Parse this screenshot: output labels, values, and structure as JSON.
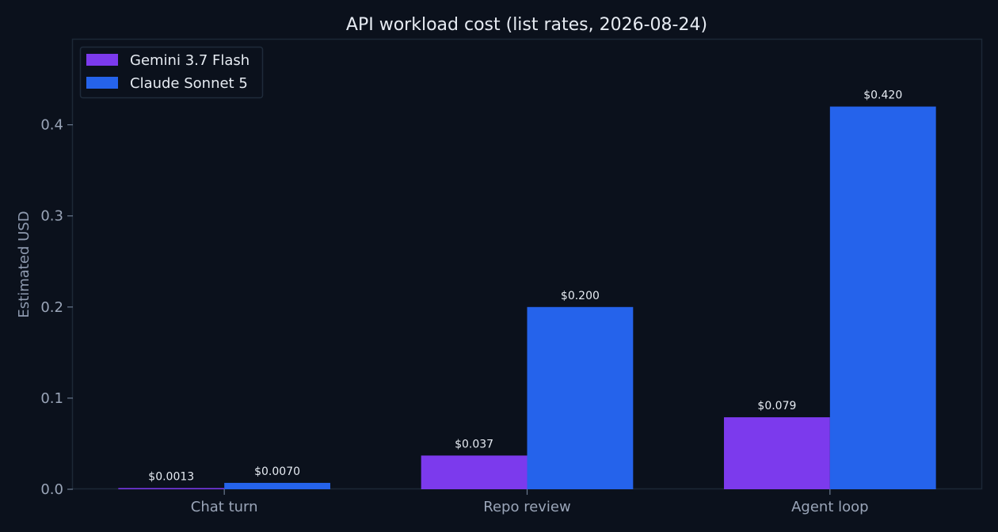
{
  "chart_data": {
    "type": "bar",
    "title": "API workload cost (list rates, 2026-08-24)",
    "xlabel": "",
    "ylabel": "Estimated USD",
    "categories": [
      "Chat turn",
      "Repo review",
      "Agent loop"
    ],
    "series": [
      {
        "name": "Gemini 3.7 Flash",
        "color": "#7c3aed",
        "values": [
          0.0013,
          0.037,
          0.079
        ],
        "labels": [
          "$0.0013",
          "$0.037",
          "$0.079"
        ]
      },
      {
        "name": "Claude Sonnet 5",
        "color": "#2563eb",
        "values": [
          0.007,
          0.2,
          0.42
        ],
        "labels": [
          "$0.0070",
          "$0.200",
          "$0.420"
        ]
      }
    ],
    "ylim": [
      0,
      0.4935
    ],
    "yticks": [
      0.0,
      0.1,
      0.2,
      0.3,
      0.4
    ],
    "ytick_labels": [
      "0.0",
      "0.1",
      "0.2",
      "0.3",
      "0.4"
    ],
    "grid": false,
    "legend_position": "top-left",
    "colors": {
      "background": "#0b111c",
      "axes_frame": "#1c2836",
      "text": "#e6ebf2",
      "tick_text": "#9aa5b8"
    }
  }
}
